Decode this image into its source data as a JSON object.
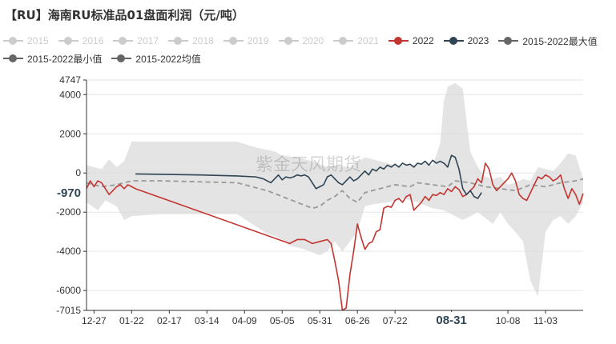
{
  "title": "【RU】海南RU标准品01盘面利润（元/吨）",
  "watermark": "紫金天风期货",
  "legend": [
    {
      "name": "2015",
      "color": "#cccccc",
      "active": false,
      "row": 0
    },
    {
      "name": "2016",
      "color": "#cccccc",
      "active": false,
      "row": 0
    },
    {
      "name": "2017",
      "color": "#cccccc",
      "active": false,
      "row": 0
    },
    {
      "name": "2018",
      "color": "#cccccc",
      "active": false,
      "row": 0
    },
    {
      "name": "2019",
      "color": "#cccccc",
      "active": false,
      "row": 0
    },
    {
      "name": "2020",
      "color": "#cccccc",
      "active": false,
      "row": 0
    },
    {
      "name": "2021",
      "color": "#cccccc",
      "active": false,
      "row": 0
    },
    {
      "name": "2022",
      "color": "#c23531",
      "active": true,
      "row": 0
    },
    {
      "name": "2023",
      "color": "#2f4554",
      "active": true,
      "row": 0
    },
    {
      "name": "2015-2022最大值",
      "color": "#666666",
      "active": true,
      "row": 0
    },
    {
      "name": "2015-2022最小值",
      "color": "#666666",
      "active": true,
      "row": 1
    },
    {
      "name": "2015-2022均值",
      "color": "#666666",
      "active": true,
      "row": 1
    }
  ],
  "chart_data": {
    "type": "line",
    "title": "【RU】海南RU标准品01盘面利润（元/吨）",
    "x_ticks": [
      {
        "label": "12-27",
        "i": 2
      },
      {
        "label": "01-22",
        "i": 12
      },
      {
        "label": "02-17",
        "i": 22
      },
      {
        "label": "03-14",
        "i": 32
      },
      {
        "label": "04-09",
        "i": 42
      },
      {
        "label": "05-05",
        "i": 52
      },
      {
        "label": "05-31",
        "i": 62
      },
      {
        "label": "06-26",
        "i": 72
      },
      {
        "label": "07-22",
        "i": 82
      },
      {
        "label": "08-31",
        "i": 97,
        "highlight": true
      },
      {
        "label": "10-08",
        "i": 112
      },
      {
        "label": "11-03",
        "i": 122
      }
    ],
    "x_count": 133,
    "ylim": [
      -7015,
      4747
    ],
    "y_ticks": [
      4747,
      4000,
      2000,
      0,
      -2000,
      -4000,
      -6000,
      -7015
    ],
    "y_marker": {
      "value": -970,
      "label": "-970"
    },
    "grid": true,
    "series": [
      {
        "name": "2015-2022最大值",
        "kind": "band_upper",
        "points": [
          [
            0,
            400
          ],
          [
            4,
            200
          ],
          [
            6,
            700
          ],
          [
            8,
            300
          ],
          [
            10,
            600
          ],
          [
            12,
            1600
          ],
          [
            14,
            1600
          ],
          [
            20,
            1600
          ],
          [
            30,
            1600
          ],
          [
            40,
            1600
          ],
          [
            45,
            1300
          ],
          [
            50,
            1100
          ],
          [
            52,
            900
          ],
          [
            56,
            800
          ],
          [
            60,
            600
          ],
          [
            64,
            300
          ],
          [
            66,
            400
          ],
          [
            70,
            300
          ],
          [
            74,
            800
          ],
          [
            78,
            600
          ],
          [
            82,
            400
          ],
          [
            86,
            400
          ],
          [
            90,
            500
          ],
          [
            92,
            400
          ],
          [
            94,
            1500
          ],
          [
            95,
            3700
          ],
          [
            96,
            4400
          ],
          [
            98,
            4600
          ],
          [
            100,
            4300
          ],
          [
            102,
            1100
          ],
          [
            104,
            300
          ],
          [
            106,
            -200
          ],
          [
            108,
            -300
          ],
          [
            110,
            -200
          ],
          [
            112,
            -600
          ],
          [
            114,
            -500
          ],
          [
            116,
            -300
          ],
          [
            118,
            -400
          ],
          [
            120,
            300
          ],
          [
            122,
            200
          ],
          [
            124,
            100
          ],
          [
            126,
            500
          ],
          [
            128,
            1000
          ],
          [
            130,
            900
          ],
          [
            132,
            -300
          ]
        ]
      },
      {
        "name": "2015-2022最小值",
        "kind": "band_lower",
        "points": [
          [
            0,
            -1500
          ],
          [
            3,
            -1900
          ],
          [
            5,
            -1400
          ],
          [
            8,
            -1700
          ],
          [
            10,
            -2400
          ],
          [
            12,
            -2200
          ],
          [
            20,
            -2100
          ],
          [
            30,
            -2100
          ],
          [
            40,
            -2100
          ],
          [
            44,
            -2600
          ],
          [
            48,
            -3100
          ],
          [
            50,
            -3200
          ],
          [
            52,
            -3400
          ],
          [
            54,
            -3700
          ],
          [
            58,
            -3900
          ],
          [
            62,
            -4200
          ],
          [
            64,
            -4000
          ],
          [
            66,
            -3500
          ],
          [
            68,
            -4000
          ],
          [
            70,
            -3500
          ],
          [
            72,
            -3000
          ],
          [
            74,
            -1700
          ],
          [
            76,
            -1600
          ],
          [
            80,
            -1500
          ],
          [
            84,
            -1300
          ],
          [
            88,
            -1500
          ],
          [
            92,
            -1800
          ],
          [
            95,
            -1900
          ],
          [
            98,
            -2200
          ],
          [
            100,
            -2400
          ],
          [
            104,
            -2000
          ],
          [
            106,
            -2300
          ],
          [
            108,
            -2600
          ],
          [
            110,
            -2000
          ],
          [
            112,
            -2600
          ],
          [
            114,
            -3000
          ],
          [
            116,
            -3500
          ],
          [
            118,
            -5500
          ],
          [
            120,
            -6300
          ],
          [
            122,
            -3000
          ],
          [
            124,
            -2400
          ],
          [
            126,
            -2200
          ],
          [
            128,
            -2600
          ],
          [
            130,
            -2200
          ],
          [
            132,
            -1500
          ]
        ]
      },
      {
        "name": "2015-2022均值",
        "kind": "dashed",
        "color": "#999999",
        "points": [
          [
            0,
            -500
          ],
          [
            4,
            -700
          ],
          [
            8,
            -600
          ],
          [
            12,
            -400
          ],
          [
            20,
            -400
          ],
          [
            30,
            -450
          ],
          [
            40,
            -500
          ],
          [
            44,
            -700
          ],
          [
            48,
            -900
          ],
          [
            52,
            -1200
          ],
          [
            56,
            -1500
          ],
          [
            60,
            -1800
          ],
          [
            62,
            -1700
          ],
          [
            64,
            -1400
          ],
          [
            66,
            -1200
          ],
          [
            68,
            -900
          ],
          [
            70,
            -1300
          ],
          [
            72,
            -1500
          ],
          [
            74,
            -1000
          ],
          [
            78,
            -800
          ],
          [
            82,
            -600
          ],
          [
            86,
            -700
          ],
          [
            88,
            -500
          ],
          [
            92,
            -600
          ],
          [
            96,
            -700
          ],
          [
            98,
            -400
          ],
          [
            102,
            -500
          ],
          [
            106,
            -700
          ],
          [
            110,
            -800
          ],
          [
            114,
            -900
          ],
          [
            118,
            -600
          ],
          [
            122,
            -700
          ],
          [
            126,
            -500
          ],
          [
            130,
            -400
          ],
          [
            132,
            -300
          ]
        ]
      },
      {
        "name": "2022",
        "kind": "line",
        "color": "#c23531",
        "points": [
          [
            0,
            -800
          ],
          [
            1,
            -400
          ],
          [
            2,
            -700
          ],
          [
            3,
            -400
          ],
          [
            4,
            -500
          ],
          [
            5,
            -800
          ],
          [
            6,
            -1100
          ],
          [
            7,
            -900
          ],
          [
            8,
            -700
          ],
          [
            9,
            -600
          ],
          [
            10,
            -800
          ],
          [
            11,
            -600
          ],
          [
            12,
            -700
          ],
          [
            13,
            -800
          ],
          [
            54,
            -3600
          ],
          [
            56,
            -3400
          ],
          [
            58,
            -3400
          ],
          [
            60,
            -3600
          ],
          [
            62,
            -3500
          ],
          [
            64,
            -3400
          ],
          [
            65,
            -3600
          ],
          [
            66,
            -4500
          ],
          [
            67,
            -5500
          ],
          [
            68,
            -7000
          ],
          [
            69,
            -6900
          ],
          [
            70,
            -5200
          ],
          [
            71,
            -4000
          ],
          [
            72,
            -2600
          ],
          [
            73,
            -3300
          ],
          [
            74,
            -3900
          ],
          [
            75,
            -3600
          ],
          [
            76,
            -3500
          ],
          [
            77,
            -3000
          ],
          [
            78,
            -2900
          ],
          [
            79,
            -1800
          ],
          [
            80,
            -1700
          ],
          [
            81,
            -1750
          ],
          [
            82,
            -1400
          ],
          [
            83,
            -1300
          ],
          [
            84,
            -1500
          ],
          [
            85,
            -1200
          ],
          [
            86,
            -1100
          ],
          [
            87,
            -1900
          ],
          [
            88,
            -1700
          ],
          [
            89,
            -1500
          ],
          [
            90,
            -1200
          ],
          [
            91,
            -1400
          ],
          [
            92,
            -1100
          ],
          [
            93,
            -1150
          ],
          [
            94,
            -1000
          ],
          [
            95,
            -1100
          ],
          [
            96,
            -800
          ],
          [
            97,
            -950
          ],
          [
            98,
            -700
          ],
          [
            99,
            -850
          ],
          [
            100,
            -1200
          ],
          [
            101,
            -1100
          ],
          [
            102,
            -900
          ],
          [
            103,
            -700
          ],
          [
            104,
            -300
          ],
          [
            105,
            -500
          ],
          [
            106,
            500
          ],
          [
            107,
            200
          ],
          [
            108,
            -600
          ],
          [
            109,
            -900
          ],
          [
            110,
            -700
          ],
          [
            111,
            -500
          ],
          [
            112,
            -300
          ],
          [
            113,
            0
          ],
          [
            114,
            -400
          ],
          [
            115,
            -1100
          ],
          [
            116,
            -1300
          ],
          [
            117,
            -1400
          ],
          [
            118,
            -1000
          ],
          [
            119,
            -600
          ],
          [
            120,
            -200
          ],
          [
            121,
            -300
          ],
          [
            122,
            -100
          ],
          [
            123,
            -200
          ],
          [
            124,
            -400
          ],
          [
            125,
            -300
          ],
          [
            126,
            -100
          ],
          [
            127,
            -800
          ],
          [
            128,
            -1300
          ],
          [
            129,
            -800
          ],
          [
            130,
            -1100
          ],
          [
            131,
            -1600
          ],
          [
            132,
            -1050
          ]
        ]
      },
      {
        "name": "2023",
        "kind": "line",
        "color": "#2f4554",
        "points": [
          [
            13,
            -50
          ],
          [
            20,
            -70
          ],
          [
            30,
            -100
          ],
          [
            40,
            -150
          ],
          [
            45,
            -200
          ],
          [
            47,
            -300
          ],
          [
            49,
            -500
          ],
          [
            50,
            -300
          ],
          [
            51,
            -100
          ],
          [
            52,
            -350
          ],
          [
            53,
            -200
          ],
          [
            54,
            -250
          ],
          [
            55,
            -200
          ],
          [
            56,
            -100
          ],
          [
            57,
            -150
          ],
          [
            58,
            -100
          ],
          [
            59,
            -200
          ],
          [
            60,
            -500
          ],
          [
            61,
            -800
          ],
          [
            62,
            -700
          ],
          [
            63,
            -600
          ],
          [
            64,
            -200
          ],
          [
            65,
            -100
          ],
          [
            66,
            -300
          ],
          [
            67,
            -500
          ],
          [
            68,
            -600
          ],
          [
            69,
            -400
          ],
          [
            70,
            -200
          ],
          [
            71,
            -400
          ],
          [
            72,
            -300
          ],
          [
            73,
            -100
          ],
          [
            74,
            100
          ],
          [
            75,
            -100
          ],
          [
            76,
            200
          ],
          [
            77,
            100
          ],
          [
            78,
            300
          ],
          [
            79,
            200
          ],
          [
            80,
            400
          ],
          [
            81,
            300
          ],
          [
            82,
            450
          ],
          [
            83,
            300
          ],
          [
            84,
            500
          ],
          [
            85,
            400
          ],
          [
            86,
            450
          ],
          [
            87,
            300
          ],
          [
            88,
            500
          ],
          [
            89,
            450
          ],
          [
            90,
            600
          ],
          [
            91,
            400
          ],
          [
            92,
            650
          ],
          [
            93,
            500
          ],
          [
            94,
            600
          ],
          [
            95,
            500
          ],
          [
            96,
            300
          ],
          [
            97,
            900
          ],
          [
            98,
            800
          ],
          [
            99,
            200
          ],
          [
            100,
            -800
          ],
          [
            101,
            -1100
          ],
          [
            102,
            -900
          ],
          [
            103,
            -1200
          ],
          [
            104,
            -1300
          ],
          [
            105,
            -1000
          ]
        ]
      }
    ]
  }
}
